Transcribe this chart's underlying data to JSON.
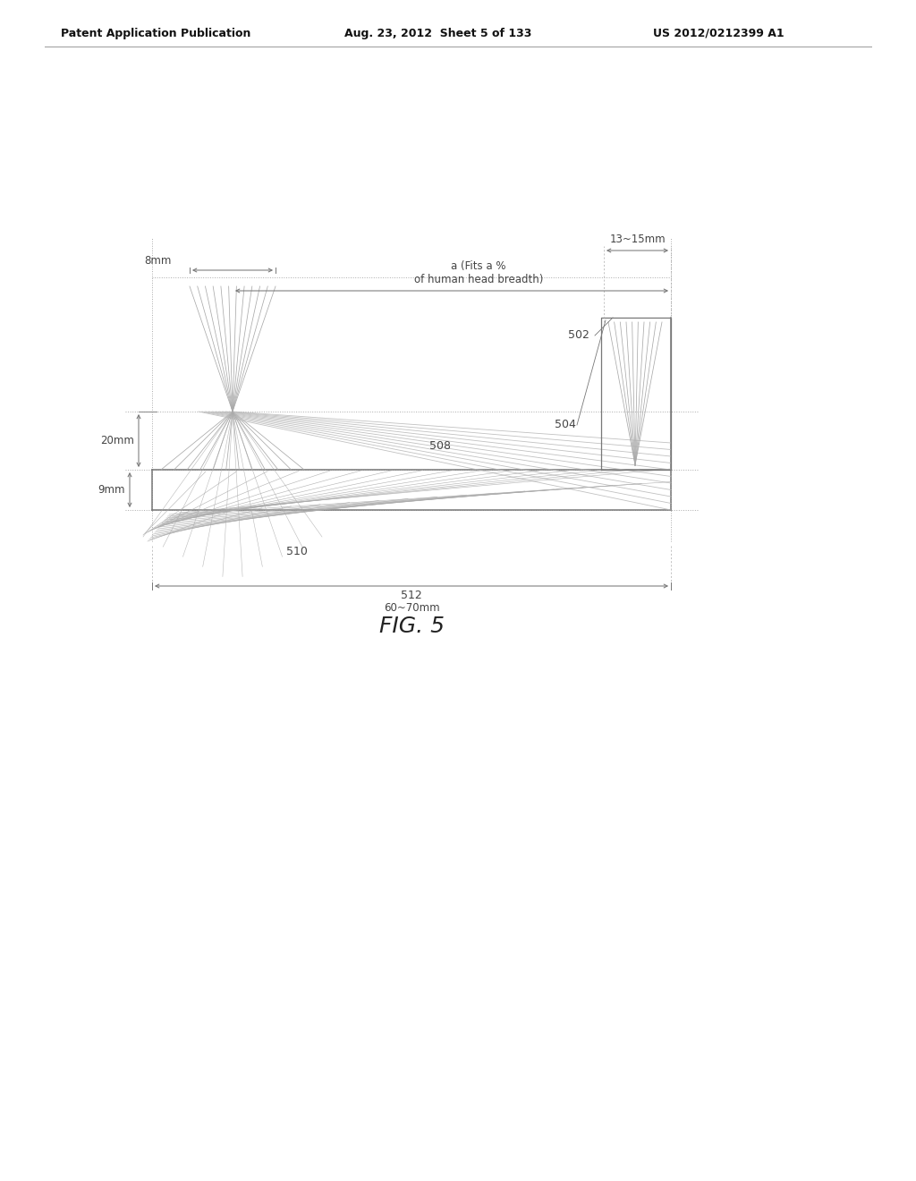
{
  "bg_color": "#ffffff",
  "lc": "#aaaaaa",
  "dc": "#777777",
  "fc": "#bbbbbb",
  "header_left": "Patent Application Publication",
  "header_mid": "Aug. 23, 2012  Sheet 5 of 133",
  "header_right": "US 2012/0212399 A1",
  "figure_label": "FIG. 5",
  "label_502": "502",
  "label_504": "504",
  "label_508": "508",
  "label_510": "510",
  "label_512": "512",
  "label_8mm": "8mm",
  "label_13_15mm": "13~15mm",
  "label_20mm": "20mm",
  "label_9mm": "9mm",
  "label_60_70mm": "60~70mm",
  "label_a": "a (Fits a %\nof human head breadth)"
}
